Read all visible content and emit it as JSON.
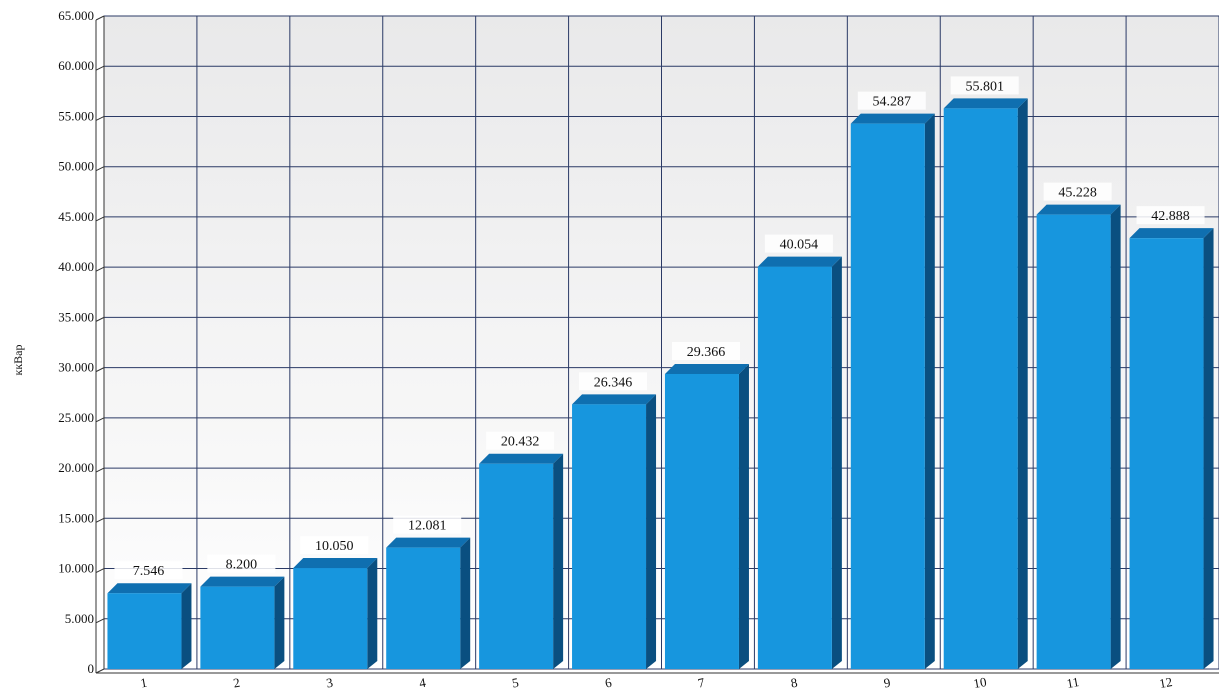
{
  "chart_data": {
    "type": "bar",
    "title": "",
    "xlabel": "",
    "ylabel": "ккВар",
    "categories": [
      "1",
      "2",
      "3",
      "4",
      "5",
      "6",
      "7",
      "8",
      "9",
      "10",
      "11",
      "12"
    ],
    "values": [
      7546,
      8200,
      10050,
      12081,
      20432,
      26346,
      29366,
      40054,
      54287,
      55801,
      45228,
      42888
    ],
    "value_labels": [
      "7.546",
      "8.200",
      "10.050",
      "12.081",
      "20.432",
      "26.346",
      "29.366",
      "40.054",
      "54.287",
      "55.801",
      "45.228",
      "42.888"
    ],
    "y_ticks": [
      0,
      5000,
      10000,
      15000,
      20000,
      25000,
      30000,
      35000,
      40000,
      45000,
      50000,
      55000,
      60000,
      65000
    ],
    "y_tick_labels": [
      "0",
      "5.000",
      "10.000",
      "15.000",
      "20.000",
      "25.000",
      "30.000",
      "35.000",
      "40.000",
      "45.000",
      "50.000",
      "55.000",
      "60.000",
      "65.000"
    ],
    "ylim": [
      0,
      65000
    ],
    "grid": true,
    "style": "3d-bar",
    "colors": {
      "bar_front": "#1796de",
      "bar_top": "#0f6fb0",
      "bar_side": "#0a4f80",
      "grid": "#2b3a66",
      "background_top": "#e9e9ea",
      "background_bottom": "#ffffff"
    }
  }
}
